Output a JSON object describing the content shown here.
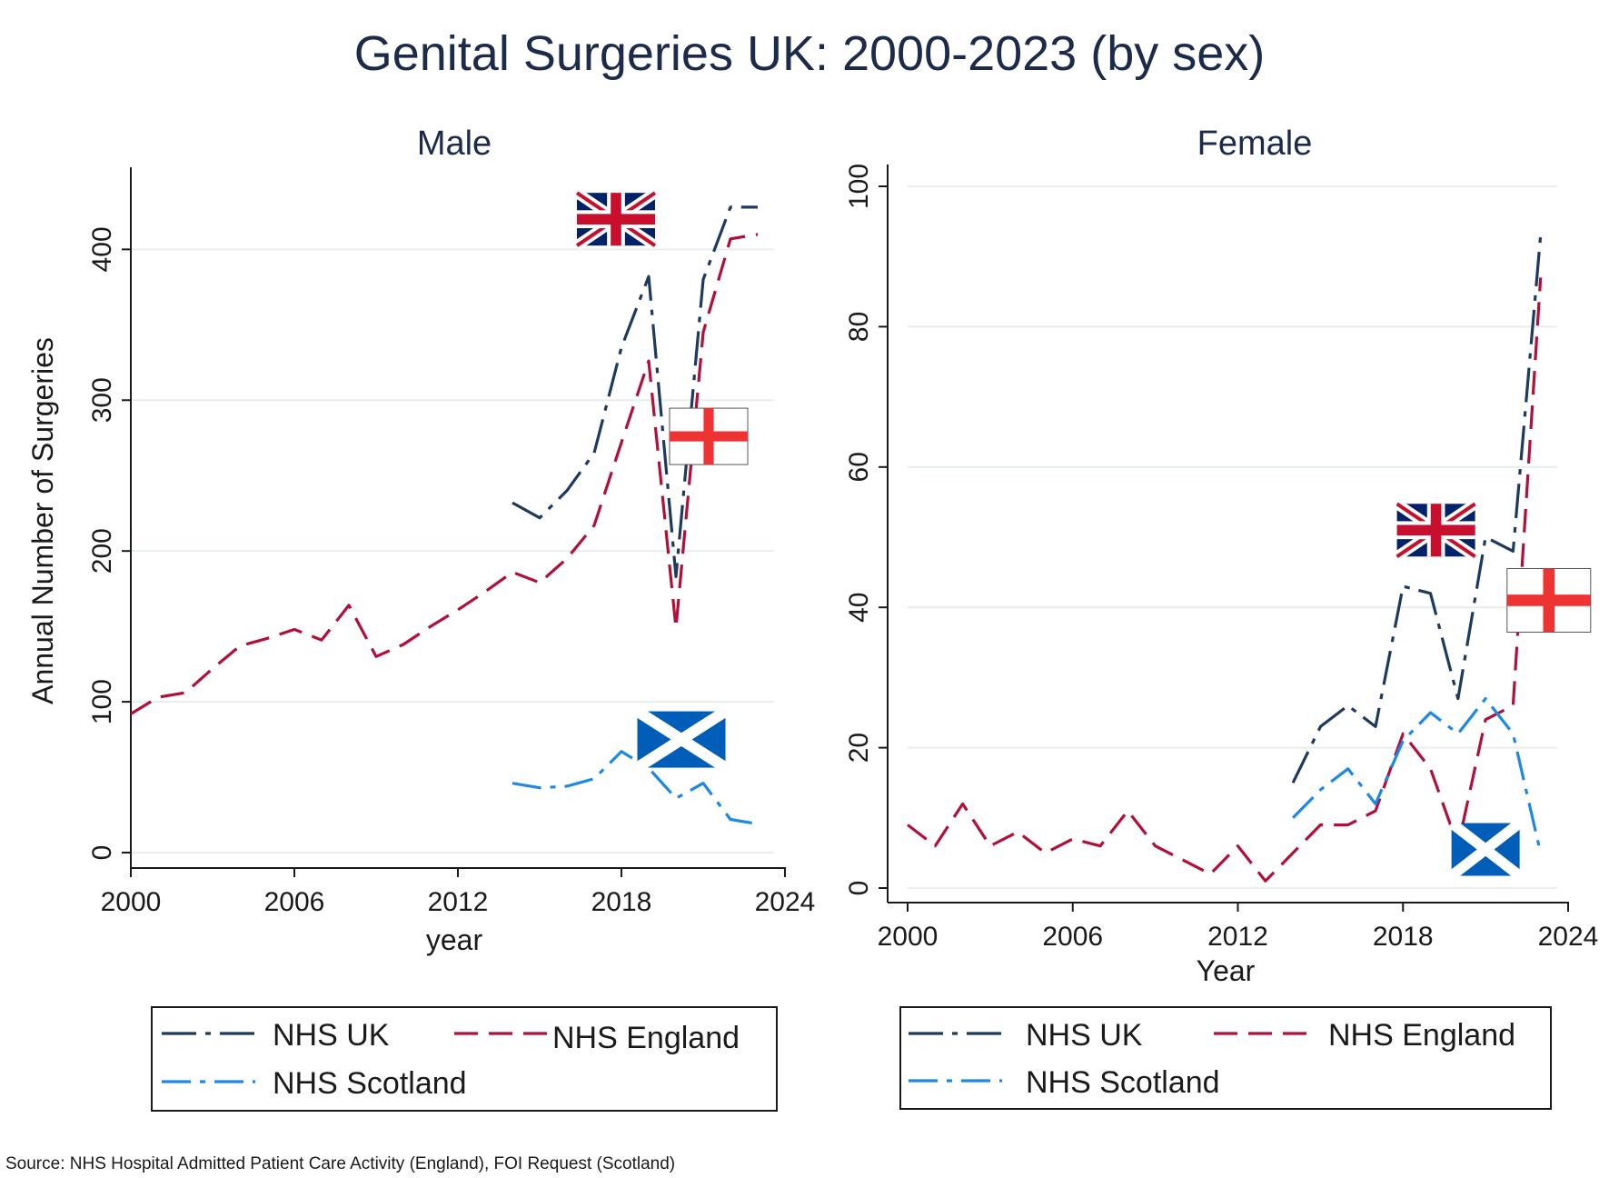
{
  "page": {
    "title": "Genital Surgeries UK: 2000-2023 (by sex)",
    "source": "Source: NHS Hospital Admitted Patient Care Activity (England), FOI Request (Scotland)"
  },
  "colors": {
    "uk": "#1f3a5f",
    "england": "#b0103a",
    "scotland": "#1e88e5",
    "grid": "#e6eeee",
    "text": "#1a1a1a",
    "title": "#1c2b4a"
  },
  "chart_data": [
    {
      "type": "line",
      "title": "Male",
      "xlabel": "year",
      "ylabel": "Annual Number of Surgeries",
      "xlim": [
        2000,
        2024
      ],
      "ylim": [
        0,
        440
      ],
      "xticks": [
        2000,
        2006,
        2012,
        2018,
        2024
      ],
      "yticks": [
        0,
        100,
        200,
        300,
        400
      ],
      "grid": true,
      "flags": [
        {
          "icon": "uk-flag-icon",
          "x": 2017.8,
          "y": 420
        },
        {
          "icon": "england-flag-icon",
          "x": 2021.2,
          "y": 276
        },
        {
          "icon": "scotland-flag-icon",
          "x": 2020.2,
          "y": 75
        }
      ],
      "series": [
        {
          "name": "NHS UK",
          "key": "uk",
          "x": [
            2014,
            2015,
            2016,
            2017,
            2018,
            2019,
            2020,
            2021,
            2022,
            2023
          ],
          "y": [
            232,
            222,
            240,
            265,
            335,
            382,
            183,
            380,
            428,
            428
          ]
        },
        {
          "name": "NHS England",
          "key": "england",
          "x": [
            2000,
            2001,
            2002,
            2003,
            2004,
            2005,
            2006,
            2007,
            2008,
            2009,
            2010,
            2011,
            2012,
            2013,
            2014,
            2015,
            2016,
            2017,
            2018,
            2019,
            2020,
            2021,
            2022,
            2023
          ],
          "y": [
            92,
            103,
            106,
            122,
            137,
            142,
            148,
            141,
            164,
            130,
            138,
            150,
            161,
            173,
            186,
            179,
            195,
            217,
            272,
            326,
            149,
            345,
            407,
            410
          ]
        },
        {
          "name": "NHS Scotland",
          "key": "scotland",
          "x": [
            2014,
            2015,
            2016,
            2017,
            2018,
            2019,
            2020,
            2021,
            2022,
            2023
          ],
          "y": [
            46,
            43,
            44,
            49,
            67,
            56,
            36,
            46,
            22,
            19
          ]
        }
      ],
      "legend": [
        "NHS UK",
        "NHS England",
        "NHS Scotland"
      ],
      "legend_position": "bottom"
    },
    {
      "type": "line",
      "title": "Female",
      "xlabel": "Year",
      "ylabel": "",
      "xlim": [
        2000,
        2024
      ],
      "ylim": [
        0,
        100
      ],
      "xticks": [
        2000,
        2006,
        2012,
        2018,
        2024
      ],
      "yticks": [
        0,
        20,
        40,
        60,
        80,
        100
      ],
      "grid": true,
      "flags": [
        {
          "icon": "uk-flag-icon",
          "x": 2019.2,
          "y": 51
        },
        {
          "icon": "england-flag-icon",
          "x": 2023.3,
          "y": 41
        },
        {
          "icon": "scotland-flag-icon",
          "x": 2021.0,
          "y": 5.5
        }
      ],
      "series": [
        {
          "name": "NHS UK",
          "key": "uk",
          "x": [
            2014,
            2015,
            2016,
            2017,
            2018,
            2019,
            2020,
            2021,
            2022,
            2023
          ],
          "y": [
            15,
            23,
            26,
            23,
            43,
            42,
            27,
            50,
            48,
            93
          ]
        },
        {
          "name": "NHS England",
          "key": "england",
          "x": [
            2000,
            2001,
            2002,
            2003,
            2004,
            2005,
            2006,
            2007,
            2008,
            2009,
            2010,
            2011,
            2012,
            2013,
            2014,
            2015,
            2016,
            2017,
            2018,
            2019,
            2020,
            2021,
            2022,
            2023
          ],
          "y": [
            9,
            6,
            12,
            6,
            8,
            5,
            7,
            6,
            11,
            6,
            4,
            2,
            6,
            1,
            5,
            9,
            9,
            11,
            22,
            17,
            6,
            24,
            26,
            87
          ]
        },
        {
          "name": "NHS Scotland",
          "key": "scotland",
          "x": [
            2014,
            2015,
            2016,
            2017,
            2018,
            2019,
            2020,
            2021,
            2022,
            2023
          ],
          "y": [
            10,
            14,
            17,
            12,
            21,
            25,
            22,
            27,
            22,
            5
          ]
        }
      ],
      "legend": [
        "NHS UK",
        "NHS England",
        "NHS Scotland"
      ],
      "legend_position": "bottom"
    }
  ]
}
